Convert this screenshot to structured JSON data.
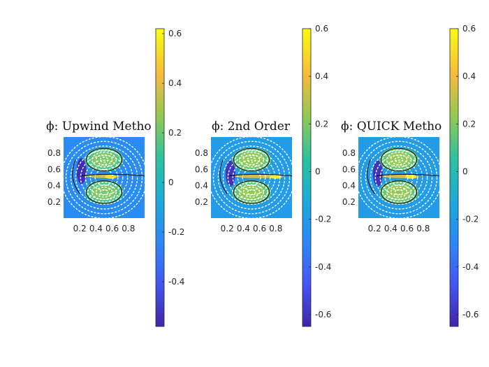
{
  "chart_data": [
    {
      "type": "heatmap",
      "title": "ϕ: Upwind Metho",
      "xlim": [
        0,
        1
      ],
      "ylim": [
        0,
        1
      ],
      "x_ticks": [
        "0.2",
        "0.4",
        "0.6",
        "0.8"
      ],
      "y_ticks": [
        "0.2",
        "0.4",
        "0.6",
        "0.8"
      ],
      "colorbar": {
        "range": [
          -0.58,
          0.62
        ],
        "ticks": [
          "0.6",
          "0.4",
          "0.2",
          "0",
          "-0.2",
          "-0.4"
        ],
        "colormap": "parula"
      },
      "field_features": [
        {
          "x": 0.5,
          "y": 0.72,
          "value": 0.15
        },
        {
          "x": 0.5,
          "y": 0.32,
          "value": 0.15
        },
        {
          "x": 0.58,
          "y": 0.51,
          "value": 0.55
        },
        {
          "x": 0.22,
          "y": 0.58,
          "value": -0.55
        }
      ],
      "background_value": -0.22,
      "streamlines": true
    },
    {
      "type": "heatmap",
      "title": "ϕ: 2nd Order",
      "xlim": [
        0,
        1
      ],
      "ylim": [
        0,
        1
      ],
      "x_ticks": [
        "0.2",
        "0.4",
        "0.6",
        "0.8"
      ],
      "y_ticks": [
        "0.2",
        "0.4",
        "0.6",
        "0.8"
      ],
      "colorbar": {
        "range": [
          -0.65,
          0.6
        ],
        "ticks": [
          "0.6",
          "0.4",
          "0.2",
          "0",
          "-0.2",
          "-0.4",
          "-0.6"
        ],
        "colormap": "parula"
      },
      "field_features": [
        {
          "x": 0.5,
          "y": 0.72,
          "value": 0.15
        },
        {
          "x": 0.5,
          "y": 0.32,
          "value": 0.15
        },
        {
          "x": 0.8,
          "y": 0.51,
          "value": 0.55
        },
        {
          "x": 0.24,
          "y": 0.55,
          "value": -0.6
        }
      ],
      "background_value": -0.2,
      "streamlines": true
    },
    {
      "type": "heatmap",
      "title": "ϕ: QUICK Metho",
      "xlim": [
        0,
        1
      ],
      "ylim": [
        0,
        1
      ],
      "x_ticks": [
        "0.2",
        "0.4",
        "0.6",
        "0.8"
      ],
      "y_ticks": [
        "0.2",
        "0.4",
        "0.6",
        "0.8"
      ],
      "colorbar": {
        "range": [
          -0.65,
          0.6
        ],
        "ticks": [
          "0.6",
          "0.4",
          "0.2",
          "0",
          "-0.2",
          "-0.4",
          "-0.6"
        ],
        "colormap": "parula"
      },
      "field_features": [
        {
          "x": 0.5,
          "y": 0.72,
          "value": 0.15
        },
        {
          "x": 0.5,
          "y": 0.32,
          "value": 0.15
        },
        {
          "x": 0.65,
          "y": 0.51,
          "value": 0.55
        },
        {
          "x": 0.24,
          "y": 0.55,
          "value": -0.6
        }
      ],
      "background_value": -0.2,
      "streamlines": true
    }
  ]
}
